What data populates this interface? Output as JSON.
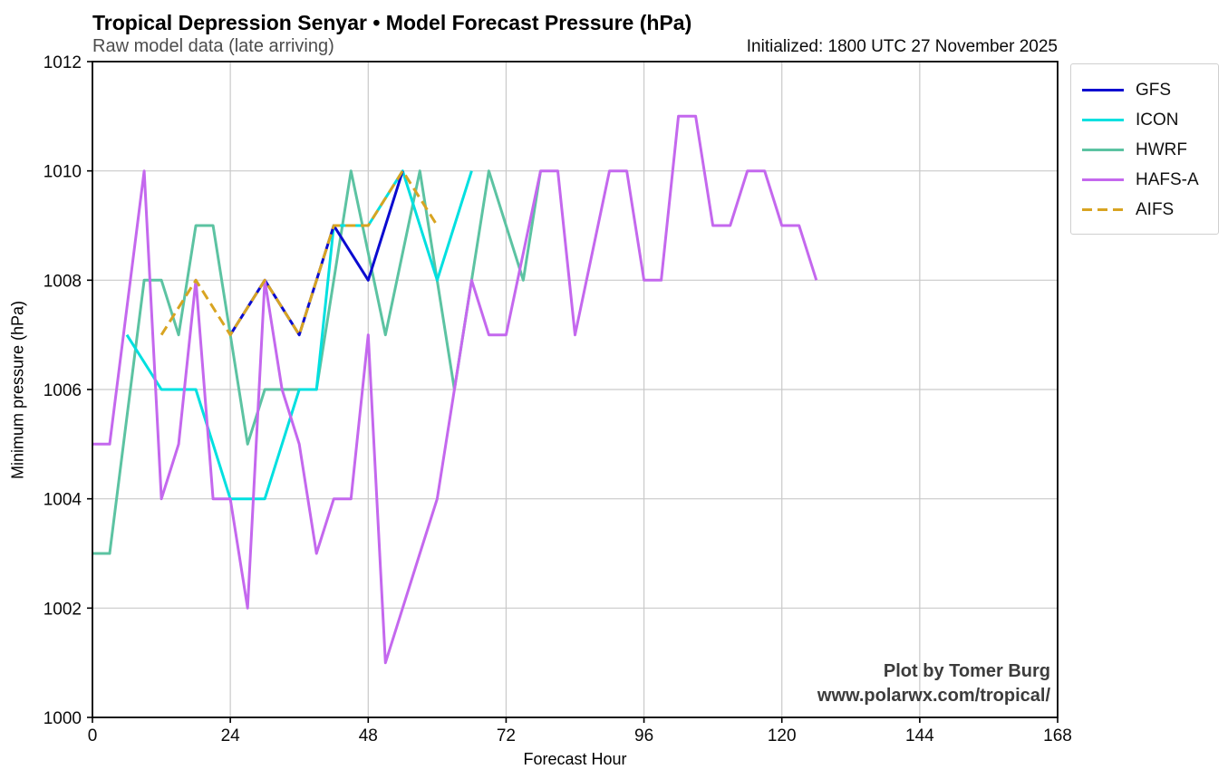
{
  "header": {
    "title": "Tropical Depression Senyar • Model Forecast Pressure (hPa)",
    "subtitle": "Raw model data (late arriving)",
    "initialized": "Initialized: 1800 UTC 27 November 2025"
  },
  "watermark": {
    "line1": "Plot by Tomer Burg",
    "line2": "www.polarwx.com/tropical/"
  },
  "legend": {
    "items": [
      {
        "label": "GFS",
        "color": "#0b0bd0",
        "dashed": false
      },
      {
        "label": "ICON",
        "color": "#00e0e0",
        "dashed": false
      },
      {
        "label": "HWRF",
        "color": "#5cc3a2",
        "dashed": false
      },
      {
        "label": "HAFS-A",
        "color": "#c468ee",
        "dashed": false
      },
      {
        "label": "AIFS",
        "color": "#d8a421",
        "dashed": true
      }
    ]
  },
  "chart_data": {
    "type": "line",
    "title": "Tropical Depression Senyar • Model Forecast Pressure (hPa)",
    "subtitle": "Raw model data (late arriving)",
    "xlabel": "Forecast Hour",
    "ylabel": "Minimum pressure (hPa)",
    "xlim": [
      0,
      168
    ],
    "ylim": [
      1000,
      1012
    ],
    "xticks": [
      0,
      24,
      48,
      72,
      96,
      120,
      144,
      168
    ],
    "yticks": [
      1000,
      1002,
      1004,
      1006,
      1008,
      1010,
      1012
    ],
    "grid": true,
    "legend_position": "outside upper right",
    "series": [
      {
        "name": "HWRF",
        "color": "#5cc3a2",
        "style": "solid",
        "points": [
          [
            0,
            1003
          ],
          [
            3,
            1003
          ],
          [
            9,
            1008
          ],
          [
            12,
            1008
          ],
          [
            15,
            1007
          ],
          [
            18,
            1009
          ],
          [
            21,
            1009
          ],
          [
            27,
            1005
          ],
          [
            30,
            1006
          ],
          [
            39,
            1006
          ],
          [
            42,
            1008
          ],
          [
            45,
            1010
          ],
          [
            51,
            1007
          ],
          [
            57,
            1010
          ],
          [
            63,
            1006
          ],
          [
            69,
            1010
          ],
          [
            75,
            1008
          ],
          [
            78,
            1010
          ]
        ]
      },
      {
        "name": "ICON",
        "color": "#00e0e0",
        "style": "solid",
        "points": [
          [
            6,
            1007
          ],
          [
            12,
            1006
          ],
          [
            18,
            1006
          ],
          [
            24,
            1004
          ],
          [
            30,
            1004
          ],
          [
            36,
            1006
          ],
          [
            39,
            1006
          ],
          [
            42,
            1009
          ],
          [
            48,
            1009
          ],
          [
            54,
            1010
          ],
          [
            60,
            1008
          ],
          [
            66,
            1010
          ]
        ]
      },
      {
        "name": "GFS",
        "color": "#0b0bd0",
        "style": "solid",
        "points": [
          [
            24,
            1007
          ],
          [
            30,
            1008
          ],
          [
            36,
            1007
          ],
          [
            42,
            1009
          ],
          [
            48,
            1008
          ],
          [
            54,
            1010
          ]
        ]
      },
      {
        "name": "HAFS-A",
        "color": "#c468ee",
        "style": "solid",
        "points": [
          [
            0,
            1005
          ],
          [
            3,
            1005
          ],
          [
            9,
            1010
          ],
          [
            12,
            1004
          ],
          [
            15,
            1005
          ],
          [
            18,
            1008
          ],
          [
            21,
            1004
          ],
          [
            24,
            1004
          ],
          [
            27,
            1002
          ],
          [
            30,
            1008
          ],
          [
            33,
            1006
          ],
          [
            36,
            1005
          ],
          [
            39,
            1003
          ],
          [
            42,
            1004
          ],
          [
            45,
            1004
          ],
          [
            48,
            1007
          ],
          [
            51,
            1001
          ],
          [
            54,
            1002
          ],
          [
            57,
            1003
          ],
          [
            60,
            1004
          ],
          [
            63,
            1006
          ],
          [
            66,
            1008
          ],
          [
            69,
            1007
          ],
          [
            72,
            1007
          ],
          [
            78,
            1010
          ],
          [
            81,
            1010
          ],
          [
            84,
            1007
          ],
          [
            90,
            1010
          ],
          [
            93,
            1010
          ],
          [
            96,
            1008
          ],
          [
            99,
            1008
          ],
          [
            102,
            1011
          ],
          [
            105,
            1011
          ],
          [
            108,
            1009
          ],
          [
            111,
            1009
          ],
          [
            114,
            1010
          ],
          [
            117,
            1010
          ],
          [
            120,
            1009
          ],
          [
            123,
            1009
          ],
          [
            126,
            1008
          ]
        ]
      },
      {
        "name": "AIFS",
        "color": "#d8a421",
        "style": "dashed",
        "points": [
          [
            12,
            1007
          ],
          [
            18,
            1008
          ],
          [
            24,
            1007
          ],
          [
            30,
            1008
          ],
          [
            36,
            1007
          ],
          [
            42,
            1009
          ],
          [
            48,
            1009
          ],
          [
            54,
            1010
          ],
          [
            60,
            1009
          ]
        ]
      }
    ]
  }
}
